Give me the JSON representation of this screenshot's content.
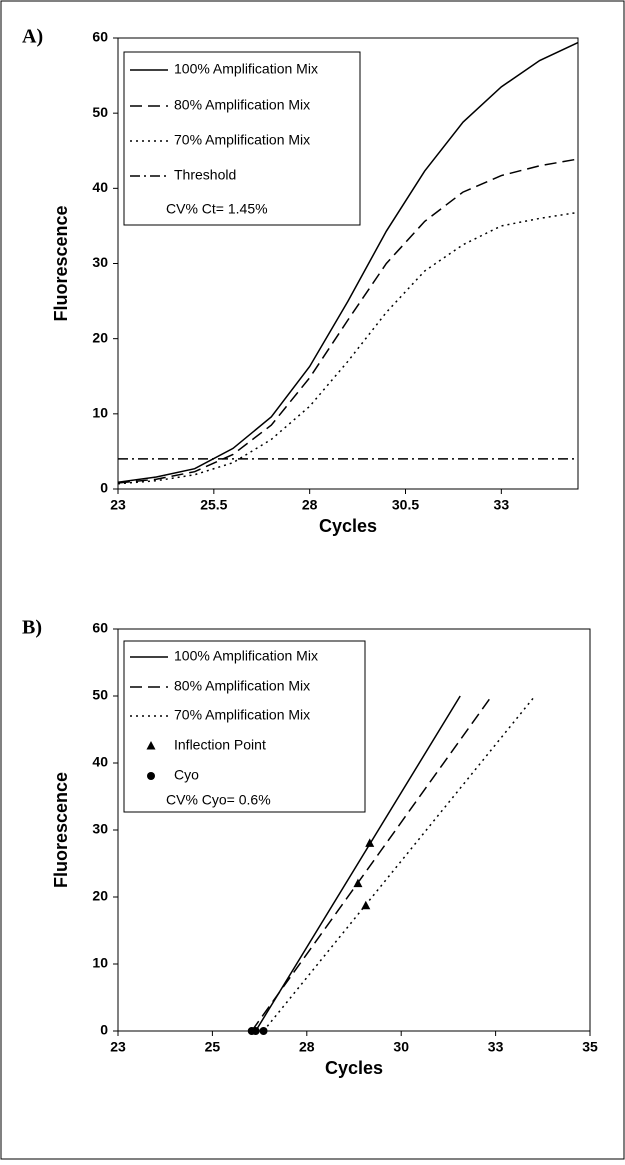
{
  "chart_data": [
    {
      "type": "line",
      "panel_label": "A)",
      "x_label": "Cycles",
      "y_label": "Fluorescence",
      "xlim": [
        23,
        35
      ],
      "ylim": [
        0,
        60
      ],
      "xticks": [
        23,
        25.5,
        28,
        30.5,
        33
      ],
      "yticks": [
        0,
        10,
        20,
        30,
        40,
        50,
        60
      ],
      "x": [
        23,
        24,
        25,
        26,
        27,
        28,
        29,
        30,
        31,
        32,
        33,
        34,
        35
      ],
      "series": [
        {
          "name": "100% Amplification Mix",
          "color": "#000000",
          "style": "solid",
          "values": [
            0.9,
            1.6,
            2.7,
            5.4,
            9.6,
            16.3,
            25,
            34.3,
            42.3,
            48.8,
            53.5,
            57,
            59.4
          ]
        },
        {
          "name": "80% Amplification Mix",
          "color": "#000000",
          "style": "dashed",
          "values": [
            0.8,
            1.3,
            2.3,
            4.6,
            8.5,
            14.8,
            22.5,
            30,
            35.6,
            39.5,
            41.7,
            43,
            43.9
          ]
        },
        {
          "name": "70% Amplification Mix",
          "color": "#000000",
          "style": "dotted",
          "values": [
            0.7,
            1.1,
            1.9,
            3.5,
            6.6,
            11,
            17,
            23.5,
            29,
            32.5,
            35,
            36,
            36.8
          ]
        },
        {
          "name": "Threshold",
          "color": "#000000",
          "style": "dashdot",
          "values": [
            4,
            4,
            4,
            4,
            4,
            4,
            4,
            4,
            4,
            4,
            4,
            4,
            4
          ]
        }
      ],
      "legend_note": "CV% Ct= 1.45%"
    },
    {
      "type": "line",
      "panel_label": "B)",
      "x_label": "Cycles",
      "y_label": "Fluorescence",
      "xlim": [
        23,
        35
      ],
      "ylim": [
        0,
        60
      ],
      "xticks": [
        23,
        {
          "value": 25.4,
          "label": "25"
        },
        {
          "value": 27.8,
          "label": "28"
        },
        {
          "value": 30.2,
          "label": "30"
        },
        {
          "value": 32.6,
          "label": "33"
        },
        35
      ],
      "yticks": [
        0,
        10,
        20,
        30,
        40,
        50,
        60
      ],
      "series": [
        {
          "name": "100% Amplification Mix",
          "color": "#000000",
          "style": "solid",
          "x": [
            26.5,
            31.7
          ],
          "values": [
            0,
            50
          ]
        },
        {
          "name": "80% Amplification Mix",
          "color": "#000000",
          "style": "dashed",
          "x": [
            26.4,
            32.5
          ],
          "values": [
            0,
            50
          ]
        },
        {
          "name": "70% Amplification Mix",
          "color": "#000000",
          "style": "dotted",
          "x": [
            26.7,
            33.6
          ],
          "values": [
            0,
            50
          ]
        },
        {
          "name": "Inflection Point",
          "color": "#000000",
          "marker": "triangle",
          "x": [
            29.4,
            29.1,
            29.3
          ],
          "values": [
            28,
            22,
            18.7
          ]
        },
        {
          "name": "Cyo",
          "color": "#000000",
          "marker": "circle",
          "x": [
            26.5,
            26.4,
            26.7
          ],
          "values": [
            0,
            0,
            0
          ]
        }
      ],
      "legend_note": "CV% Cyo= 0.6%"
    }
  ]
}
